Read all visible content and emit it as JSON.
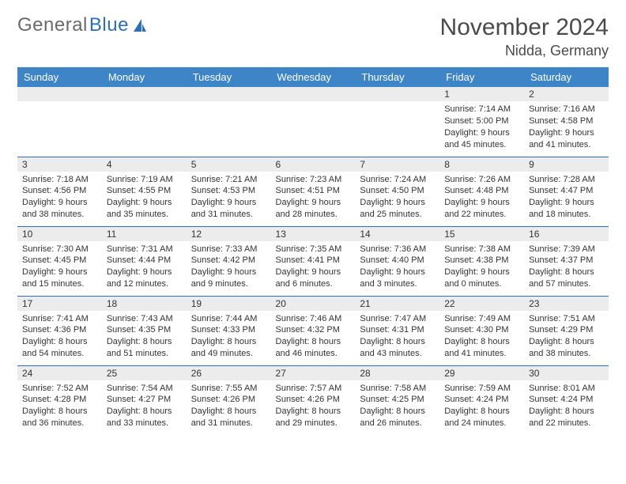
{
  "brand": {
    "part1": "General",
    "part2": "Blue"
  },
  "title": "November 2024",
  "location": "Nidda, Germany",
  "colors": {
    "header_bg": "#3d85c6",
    "header_text": "#ffffff",
    "border": "#2d6fb5",
    "daynum_bg": "#ececec",
    "brand_gray": "#6b6b6b",
    "brand_blue": "#2d6fb5"
  },
  "weekdays": [
    "Sunday",
    "Monday",
    "Tuesday",
    "Wednesday",
    "Thursday",
    "Friday",
    "Saturday"
  ],
  "weeks": [
    [
      {
        "day": "",
        "sunrise": "",
        "sunset": "",
        "daylight": ""
      },
      {
        "day": "",
        "sunrise": "",
        "sunset": "",
        "daylight": ""
      },
      {
        "day": "",
        "sunrise": "",
        "sunset": "",
        "daylight": ""
      },
      {
        "day": "",
        "sunrise": "",
        "sunset": "",
        "daylight": ""
      },
      {
        "day": "",
        "sunrise": "",
        "sunset": "",
        "daylight": ""
      },
      {
        "day": "1",
        "sunrise": "Sunrise: 7:14 AM",
        "sunset": "Sunset: 5:00 PM",
        "daylight": "Daylight: 9 hours and 45 minutes."
      },
      {
        "day": "2",
        "sunrise": "Sunrise: 7:16 AM",
        "sunset": "Sunset: 4:58 PM",
        "daylight": "Daylight: 9 hours and 41 minutes."
      }
    ],
    [
      {
        "day": "3",
        "sunrise": "Sunrise: 7:18 AM",
        "sunset": "Sunset: 4:56 PM",
        "daylight": "Daylight: 9 hours and 38 minutes."
      },
      {
        "day": "4",
        "sunrise": "Sunrise: 7:19 AM",
        "sunset": "Sunset: 4:55 PM",
        "daylight": "Daylight: 9 hours and 35 minutes."
      },
      {
        "day": "5",
        "sunrise": "Sunrise: 7:21 AM",
        "sunset": "Sunset: 4:53 PM",
        "daylight": "Daylight: 9 hours and 31 minutes."
      },
      {
        "day": "6",
        "sunrise": "Sunrise: 7:23 AM",
        "sunset": "Sunset: 4:51 PM",
        "daylight": "Daylight: 9 hours and 28 minutes."
      },
      {
        "day": "7",
        "sunrise": "Sunrise: 7:24 AM",
        "sunset": "Sunset: 4:50 PM",
        "daylight": "Daylight: 9 hours and 25 minutes."
      },
      {
        "day": "8",
        "sunrise": "Sunrise: 7:26 AM",
        "sunset": "Sunset: 4:48 PM",
        "daylight": "Daylight: 9 hours and 22 minutes."
      },
      {
        "day": "9",
        "sunrise": "Sunrise: 7:28 AM",
        "sunset": "Sunset: 4:47 PM",
        "daylight": "Daylight: 9 hours and 18 minutes."
      }
    ],
    [
      {
        "day": "10",
        "sunrise": "Sunrise: 7:30 AM",
        "sunset": "Sunset: 4:45 PM",
        "daylight": "Daylight: 9 hours and 15 minutes."
      },
      {
        "day": "11",
        "sunrise": "Sunrise: 7:31 AM",
        "sunset": "Sunset: 4:44 PM",
        "daylight": "Daylight: 9 hours and 12 minutes."
      },
      {
        "day": "12",
        "sunrise": "Sunrise: 7:33 AM",
        "sunset": "Sunset: 4:42 PM",
        "daylight": "Daylight: 9 hours and 9 minutes."
      },
      {
        "day": "13",
        "sunrise": "Sunrise: 7:35 AM",
        "sunset": "Sunset: 4:41 PM",
        "daylight": "Daylight: 9 hours and 6 minutes."
      },
      {
        "day": "14",
        "sunrise": "Sunrise: 7:36 AM",
        "sunset": "Sunset: 4:40 PM",
        "daylight": "Daylight: 9 hours and 3 minutes."
      },
      {
        "day": "15",
        "sunrise": "Sunrise: 7:38 AM",
        "sunset": "Sunset: 4:38 PM",
        "daylight": "Daylight: 9 hours and 0 minutes."
      },
      {
        "day": "16",
        "sunrise": "Sunrise: 7:39 AM",
        "sunset": "Sunset: 4:37 PM",
        "daylight": "Daylight: 8 hours and 57 minutes."
      }
    ],
    [
      {
        "day": "17",
        "sunrise": "Sunrise: 7:41 AM",
        "sunset": "Sunset: 4:36 PM",
        "daylight": "Daylight: 8 hours and 54 minutes."
      },
      {
        "day": "18",
        "sunrise": "Sunrise: 7:43 AM",
        "sunset": "Sunset: 4:35 PM",
        "daylight": "Daylight: 8 hours and 51 minutes."
      },
      {
        "day": "19",
        "sunrise": "Sunrise: 7:44 AM",
        "sunset": "Sunset: 4:33 PM",
        "daylight": "Daylight: 8 hours and 49 minutes."
      },
      {
        "day": "20",
        "sunrise": "Sunrise: 7:46 AM",
        "sunset": "Sunset: 4:32 PM",
        "daylight": "Daylight: 8 hours and 46 minutes."
      },
      {
        "day": "21",
        "sunrise": "Sunrise: 7:47 AM",
        "sunset": "Sunset: 4:31 PM",
        "daylight": "Daylight: 8 hours and 43 minutes."
      },
      {
        "day": "22",
        "sunrise": "Sunrise: 7:49 AM",
        "sunset": "Sunset: 4:30 PM",
        "daylight": "Daylight: 8 hours and 41 minutes."
      },
      {
        "day": "23",
        "sunrise": "Sunrise: 7:51 AM",
        "sunset": "Sunset: 4:29 PM",
        "daylight": "Daylight: 8 hours and 38 minutes."
      }
    ],
    [
      {
        "day": "24",
        "sunrise": "Sunrise: 7:52 AM",
        "sunset": "Sunset: 4:28 PM",
        "daylight": "Daylight: 8 hours and 36 minutes."
      },
      {
        "day": "25",
        "sunrise": "Sunrise: 7:54 AM",
        "sunset": "Sunset: 4:27 PM",
        "daylight": "Daylight: 8 hours and 33 minutes."
      },
      {
        "day": "26",
        "sunrise": "Sunrise: 7:55 AM",
        "sunset": "Sunset: 4:26 PM",
        "daylight": "Daylight: 8 hours and 31 minutes."
      },
      {
        "day": "27",
        "sunrise": "Sunrise: 7:57 AM",
        "sunset": "Sunset: 4:26 PM",
        "daylight": "Daylight: 8 hours and 29 minutes."
      },
      {
        "day": "28",
        "sunrise": "Sunrise: 7:58 AM",
        "sunset": "Sunset: 4:25 PM",
        "daylight": "Daylight: 8 hours and 26 minutes."
      },
      {
        "day": "29",
        "sunrise": "Sunrise: 7:59 AM",
        "sunset": "Sunset: 4:24 PM",
        "daylight": "Daylight: 8 hours and 24 minutes."
      },
      {
        "day": "30",
        "sunrise": "Sunrise: 8:01 AM",
        "sunset": "Sunset: 4:24 PM",
        "daylight": "Daylight: 8 hours and 22 minutes."
      }
    ]
  ]
}
